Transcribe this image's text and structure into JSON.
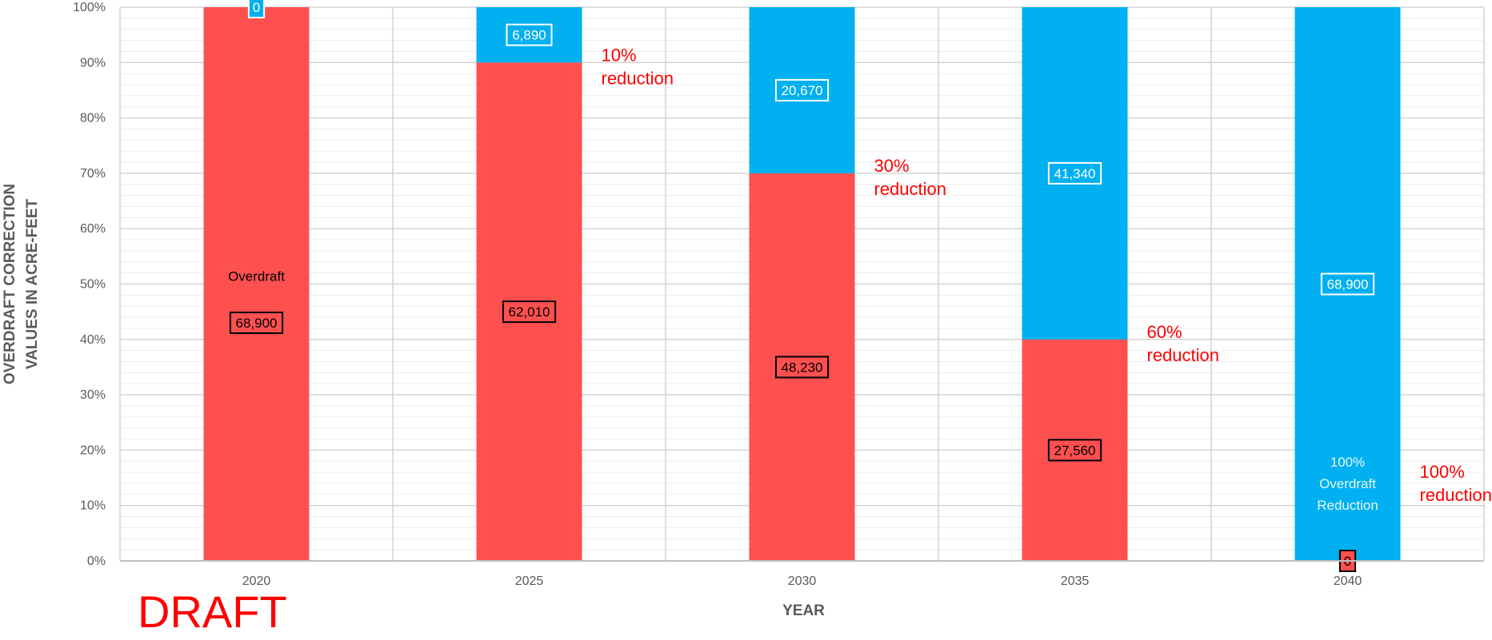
{
  "chart_data": {
    "type": "bar",
    "stacked": true,
    "normalized": true,
    "categories": [
      "2020",
      "2025",
      "2030",
      "2035",
      "2040"
    ],
    "series": [
      {
        "values": [
          68900,
          62010,
          48230,
          27560,
          0
        ],
        "color": "#ff5050",
        "label_color": "#000000"
      },
      {
        "values": [
          0,
          6890,
          20670,
          41340,
          68900
        ],
        "color": "#00b0f0",
        "label_color": "#ffffff"
      }
    ],
    "data_labels": [
      [
        "68,900",
        "62,010",
        "48,230",
        "27,560",
        "0"
      ],
      [
        "0",
        "6,890",
        "20,670",
        "41,340",
        "68,900"
      ]
    ],
    "ylabel_lines": [
      "OVERDRAFT CORRECTION",
      "VALUES IN ACRE-FEET"
    ],
    "xlabel": "YEAR",
    "yticks": [
      "0%",
      "10%",
      "20%",
      "30%",
      "40%",
      "50%",
      "60%",
      "70%",
      "80%",
      "90%",
      "100%"
    ],
    "ylim": [
      0,
      100
    ],
    "grid": true,
    "bar_texts": [
      {
        "category": "2020",
        "series": 0,
        "lines": [
          "Overdraft"
        ],
        "color": "#000000"
      },
      {
        "category": "2040",
        "series": 1,
        "lines": [
          "100%",
          "Overdraft",
          "Reduction"
        ],
        "color": "#e6f7fd"
      }
    ],
    "annotations": [
      {
        "category": "2025",
        "lines": [
          "10%",
          "reduction"
        ]
      },
      {
        "category": "2030",
        "lines": [
          "30%",
          "reduction"
        ]
      },
      {
        "category": "2035",
        "lines": [
          "60%",
          "reduction"
        ]
      },
      {
        "category": "2040",
        "lines": [
          "100%",
          "reduction"
        ]
      }
    ]
  },
  "watermark": "DRAFT"
}
